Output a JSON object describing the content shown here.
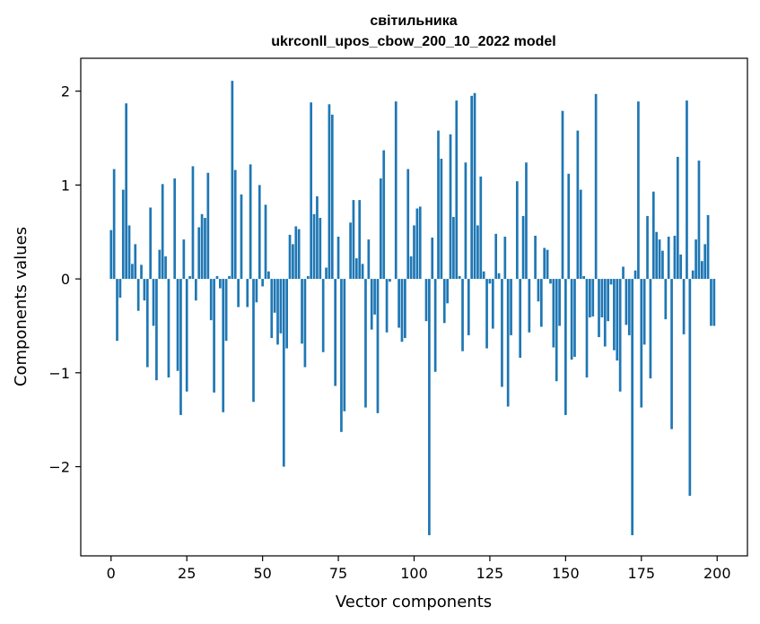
{
  "chart_data": {
    "type": "bar",
    "title_line1": "світильника",
    "title_line2": "ukrconll_upos_cbow_200_10_2022 model",
    "xlabel": "Vector components",
    "ylabel": "Components values",
    "xlim": [
      -10,
      210
    ],
    "ylim": [
      -2.95,
      2.35
    ],
    "xticks": [
      0,
      25,
      50,
      75,
      100,
      125,
      150,
      175,
      200
    ],
    "xtick_labels": [
      "0",
      "25",
      "50",
      "75",
      "100",
      "125",
      "150",
      "175",
      "200"
    ],
    "yticks": [
      2,
      1,
      0,
      -1,
      -2
    ],
    "ytick_labels": [
      "2",
      "1",
      "0",
      "−1",
      "−2"
    ],
    "bar_color": "#1f77b4",
    "x": [
      0,
      1,
      2,
      3,
      4,
      5,
      6,
      7,
      8,
      9,
      10,
      11,
      12,
      13,
      14,
      15,
      16,
      17,
      18,
      19,
      20,
      21,
      22,
      23,
      24,
      25,
      26,
      27,
      28,
      29,
      30,
      31,
      32,
      33,
      34,
      35,
      36,
      37,
      38,
      39,
      40,
      41,
      42,
      43,
      44,
      45,
      46,
      47,
      48,
      49,
      50,
      51,
      52,
      53,
      54,
      55,
      56,
      57,
      58,
      59,
      60,
      61,
      62,
      63,
      64,
      65,
      66,
      67,
      68,
      69,
      70,
      71,
      72,
      73,
      74,
      75,
      76,
      77,
      78,
      79,
      80,
      81,
      82,
      83,
      84,
      85,
      86,
      87,
      88,
      89,
      90,
      91,
      92,
      93,
      94,
      95,
      96,
      97,
      98,
      99,
      100,
      101,
      102,
      103,
      104,
      105,
      106,
      107,
      108,
      109,
      110,
      111,
      112,
      113,
      114,
      115,
      116,
      117,
      118,
      119,
      120,
      121,
      122,
      123,
      124,
      125,
      126,
      127,
      128,
      129,
      130,
      131,
      132,
      133,
      134,
      135,
      136,
      137,
      138,
      139,
      140,
      141,
      142,
      143,
      144,
      145,
      146,
      147,
      148,
      149,
      150,
      151,
      152,
      153,
      154,
      155,
      156,
      157,
      158,
      159,
      160,
      161,
      162,
      163,
      164,
      165,
      166,
      167,
      168,
      169,
      170,
      171,
      172,
      173,
      174,
      175,
      176,
      177,
      178,
      179,
      180,
      181,
      182,
      183,
      184,
      185,
      186,
      187,
      188,
      189,
      190,
      191,
      192,
      193,
      194,
      195,
      196,
      197,
      198,
      199
    ],
    "values": [
      0.52,
      1.17,
      -0.66,
      -0.2,
      0.95,
      1.87,
      0.57,
      0.16,
      0.37,
      -0.34,
      0.15,
      -0.23,
      -0.94,
      0.76,
      -0.5,
      -1.08,
      0.31,
      1.01,
      0.24,
      -1.05,
      0.0,
      1.07,
      -0.98,
      -1.45,
      0.42,
      -1.2,
      0.03,
      1.2,
      -0.23,
      0.55,
      0.69,
      0.65,
      1.13,
      -0.44,
      -1.21,
      0.03,
      -0.1,
      -1.42,
      -0.66,
      0.03,
      2.11,
      1.16,
      -0.3,
      0.9,
      0.0,
      -0.3,
      1.22,
      -1.31,
      -0.25,
      1.0,
      -0.08,
      0.79,
      0.08,
      -0.63,
      -0.36,
      -0.7,
      -0.58,
      -2.0,
      -0.74,
      0.47,
      0.37,
      0.56,
      0.53,
      -0.69,
      -0.94,
      0.03,
      1.88,
      0.69,
      0.88,
      0.65,
      -0.78,
      0.12,
      1.86,
      1.75,
      -1.14,
      0.45,
      -1.63,
      -1.41,
      0.0,
      0.6,
      0.84,
      0.22,
      0.84,
      0.16,
      -1.37,
      0.42,
      -0.54,
      -0.38,
      -1.43,
      1.07,
      1.37,
      -0.57,
      -0.03,
      0.0,
      1.89,
      -0.52,
      -0.67,
      -0.63,
      1.17,
      0.24,
      0.57,
      0.75,
      0.77,
      0.0,
      -0.45,
      -2.73,
      0.44,
      -0.99,
      1.58,
      1.28,
      -0.47,
      -0.26,
      1.54,
      0.66,
      1.9,
      0.03,
      -0.77,
      1.24,
      -0.6,
      1.95,
      1.98,
      0.57,
      1.09,
      0.08,
      -0.74,
      -0.05,
      -0.53,
      0.48,
      0.06,
      -1.15,
      0.45,
      -1.36,
      -0.6,
      0.0,
      1.04,
      -0.84,
      0.67,
      1.24,
      -0.57,
      0.0,
      0.46,
      -0.24,
      -0.51,
      0.33,
      0.31,
      -0.05,
      -0.73,
      -1.09,
      -0.5,
      1.79,
      -1.45,
      1.12,
      -0.86,
      -0.83,
      1.58,
      0.95,
      0.03,
      -1.05,
      -0.41,
      -0.4,
      1.97,
      -0.62,
      -0.41,
      -0.72,
      -0.45,
      -0.06,
      -0.76,
      -0.87,
      -1.2,
      0.13,
      -0.49,
      -0.6,
      -2.73,
      0.09,
      1.89,
      -1.37,
      -0.7,
      0.67,
      -1.06,
      0.93,
      0.5,
      0.42,
      0.3,
      -0.43,
      0.45,
      -1.6,
      0.46,
      1.3,
      0.26,
      -0.59,
      1.9,
      -2.31,
      0.09,
      0.42,
      1.26,
      0.19,
      0.37,
      0.68,
      -0.5,
      -0.5
    ]
  }
}
